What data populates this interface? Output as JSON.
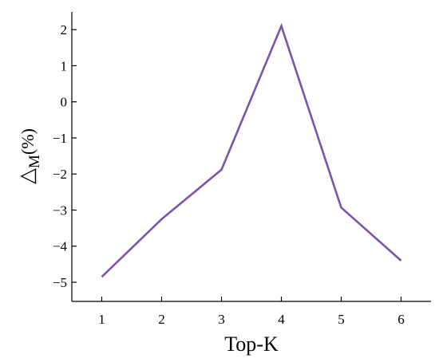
{
  "chart_data": {
    "type": "line",
    "xlabel": "Top-K",
    "ylabel": {
      "symbol": "△",
      "subscript": "M",
      "unit": "(%)"
    },
    "x": [
      1,
      2,
      3,
      4,
      5,
      6
    ],
    "series": [
      {
        "color": "#7b52ae",
        "values": [
          -4.85,
          -3.25,
          -1.88,
          2.1,
          -2.93,
          -4.4
        ]
      }
    ],
    "xlim": [
      0.5,
      6.5
    ],
    "xticks": [
      1,
      2,
      3,
      4,
      5,
      6
    ],
    "ylim": [
      -5.53,
      2.49
    ],
    "yticks": [
      {
        "value": -5,
        "label": "−5"
      },
      {
        "value": -4,
        "label": "−4"
      },
      {
        "value": -3,
        "label": "−3"
      },
      {
        "value": -2,
        "label": "−2"
      },
      {
        "value": -1,
        "label": "−1"
      },
      0,
      1,
      2
    ]
  }
}
